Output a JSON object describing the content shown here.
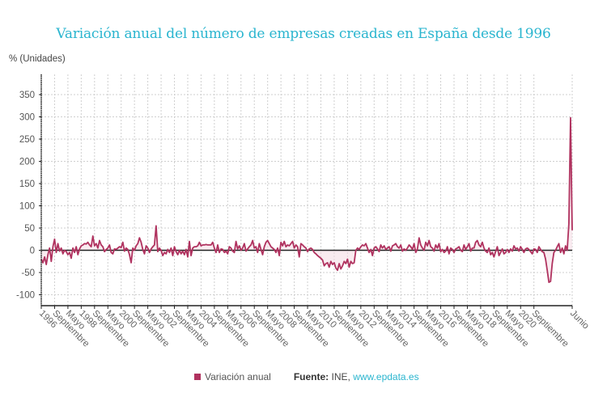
{
  "chart_data": {
    "type": "area",
    "title": "Variación anual del número de empresas creadas en España desde 1996",
    "ylabel": "% (Unidades)",
    "xlabel": "",
    "ylim": [
      -125,
      390
    ],
    "yticks": [
      350,
      300,
      250,
      200,
      150,
      100,
      50,
      0,
      -50,
      -100
    ],
    "grid": true,
    "legend_position": "bottom-center",
    "x_start": "1996-01",
    "x_end": "2021-06",
    "xtick_labels": [
      "1996",
      "Septiembre",
      "Mayo",
      "1998",
      "Septiembre",
      "Mayo",
      "2000",
      "Septiembre",
      "Mayo",
      "2002",
      "Septiembre",
      "Mayo",
      "2004",
      "Septiembre",
      "Mayo",
      "2006",
      "Septiembre",
      "Mayo",
      "2008",
      "Septiembre",
      "Mayo",
      "2010",
      "Septiembre",
      "Mayo",
      "2012",
      "Septiembre",
      "Mayo",
      "2014",
      "Septiembre",
      "Mayo",
      "2016",
      "Septiembre",
      "Mayo",
      "2018",
      "Septiembre",
      "Mayo",
      "2020",
      "Septiembre",
      "Junio"
    ],
    "series": [
      {
        "name": "Variación anual",
        "color": "#b0325f",
        "values": [
          -20,
          -28,
          -15,
          -32,
          -10,
          5,
          -25,
          8,
          25,
          -5,
          15,
          -2,
          5,
          -8,
          0,
          -3,
          -10,
          -5,
          -18,
          5,
          -5,
          8,
          -10,
          3,
          10,
          12,
          15,
          14,
          18,
          12,
          8,
          32,
          10,
          15,
          5,
          22,
          12,
          8,
          -3,
          2,
          5,
          12,
          -5,
          -8,
          3,
          2,
          5,
          8,
          6,
          18,
          -2,
          5,
          2,
          -10,
          -28,
          5,
          0,
          10,
          15,
          28,
          18,
          2,
          -8,
          10,
          5,
          -5,
          3,
          8,
          12,
          55,
          -3,
          5,
          0,
          -12,
          -5,
          -8,
          2,
          -5,
          5,
          -12,
          8,
          -3,
          -10,
          0,
          -8,
          -2,
          -10,
          2,
          -15,
          20,
          -12,
          5,
          8,
          8,
          10,
          18,
          10,
          12,
          12,
          13,
          12,
          12,
          12,
          18,
          5,
          -5,
          12,
          -5,
          3,
          2,
          -5,
          -2,
          -8,
          8,
          5,
          -2,
          -5,
          20,
          3,
          10,
          0,
          5,
          15,
          -2,
          3,
          8,
          12,
          22,
          5,
          8,
          -5,
          15,
          2,
          -10,
          8,
          18,
          22,
          15,
          8,
          5,
          2,
          -5,
          5,
          -12,
          18,
          10,
          20,
          8,
          12,
          10,
          15,
          20,
          5,
          12,
          8,
          -15,
          15,
          12,
          8,
          5,
          -3,
          3,
          5,
          2,
          -5,
          -8,
          -12,
          -15,
          -18,
          -22,
          -35,
          -30,
          -28,
          -38,
          -25,
          -32,
          -28,
          -40,
          -45,
          -30,
          -42,
          -35,
          -25,
          -30,
          -20,
          -38,
          -25,
          -30,
          -28,
          0,
          5,
          2,
          8,
          12,
          10,
          15,
          5,
          -5,
          2,
          -12,
          5,
          8,
          3,
          -3,
          12,
          5,
          10,
          2,
          5,
          8,
          -2,
          10,
          12,
          15,
          8,
          5,
          12,
          -2,
          3,
          0,
          5,
          12,
          8,
          2,
          15,
          -5,
          3,
          28,
          12,
          5,
          0,
          18,
          10,
          22,
          8,
          5,
          -2,
          12,
          5,
          15,
          -3,
          2,
          -5,
          -2,
          8,
          -8,
          5,
          2,
          -5,
          3,
          5,
          8,
          0,
          -3,
          12,
          2,
          8,
          15,
          -2,
          5,
          5,
          18,
          22,
          12,
          8,
          18,
          5,
          -2,
          -5,
          5,
          -10,
          -5,
          -15,
          -3,
          8,
          -12,
          -5,
          3,
          -8,
          -5,
          2,
          -5,
          3,
          -2,
          10,
          3,
          5,
          -2,
          8,
          2,
          -5,
          3,
          5,
          2,
          -3,
          -8,
          3,
          2,
          -5,
          8,
          2,
          -3,
          -5,
          -20,
          -45,
          -72,
          -70,
          -30,
          -5,
          0,
          8,
          15,
          -5,
          5,
          -8,
          10,
          0,
          60,
          298,
          45
        ]
      }
    ]
  },
  "legend": {
    "series_label": "Variación anual",
    "source_label": "Fuente:",
    "source_text": "INE,",
    "source_link": "www.epdata.es"
  }
}
